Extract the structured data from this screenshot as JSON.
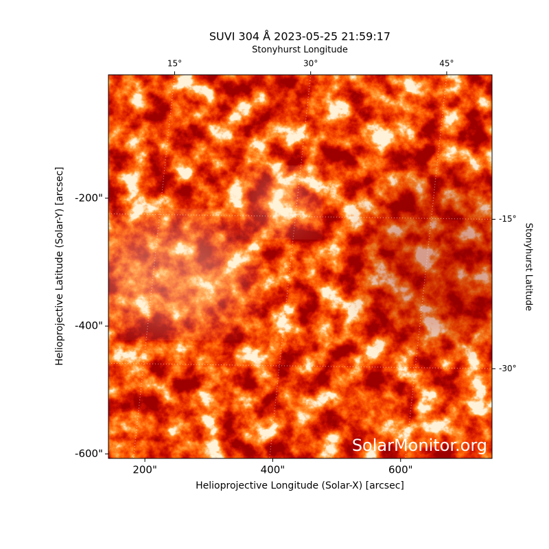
{
  "chart_data": {
    "type": "image",
    "title": "SUVI 304 Å 2023-05-25 21:59:17",
    "xlabel": "Helioprojective Longitude (Solar-X) [arcsec]",
    "ylabel": "Helioprojective Latitude (Solar-Y) [arcsec]",
    "x2label": "Stonyhurst Longitude",
    "y2label": "Stonyhurst Latitude",
    "watermark": "SolarMonitor.org",
    "xlim": [
      143,
      743
    ],
    "ylim": [
      -607,
      -7
    ],
    "xticks": [
      {
        "value": 200,
        "label": "200\""
      },
      {
        "value": 400,
        "label": "400\""
      },
      {
        "value": 600,
        "label": "600\""
      }
    ],
    "yticks": [
      {
        "value": -200,
        "label": "-200\""
      },
      {
        "value": -400,
        "label": "-400\""
      },
      {
        "value": -600,
        "label": "-600\""
      }
    ],
    "x2lim": [
      7.7,
      50
    ],
    "x2ticks": [
      {
        "value": 15,
        "label": "15°"
      },
      {
        "value": 30,
        "label": "30°"
      },
      {
        "value": 45,
        "label": "45°"
      }
    ],
    "y2lim": [
      -39,
      -0.5
    ],
    "y2ticks": [
      {
        "value": -15,
        "label": "-15°"
      },
      {
        "value": -30,
        "label": "-30°"
      }
    ],
    "grid": true
  }
}
